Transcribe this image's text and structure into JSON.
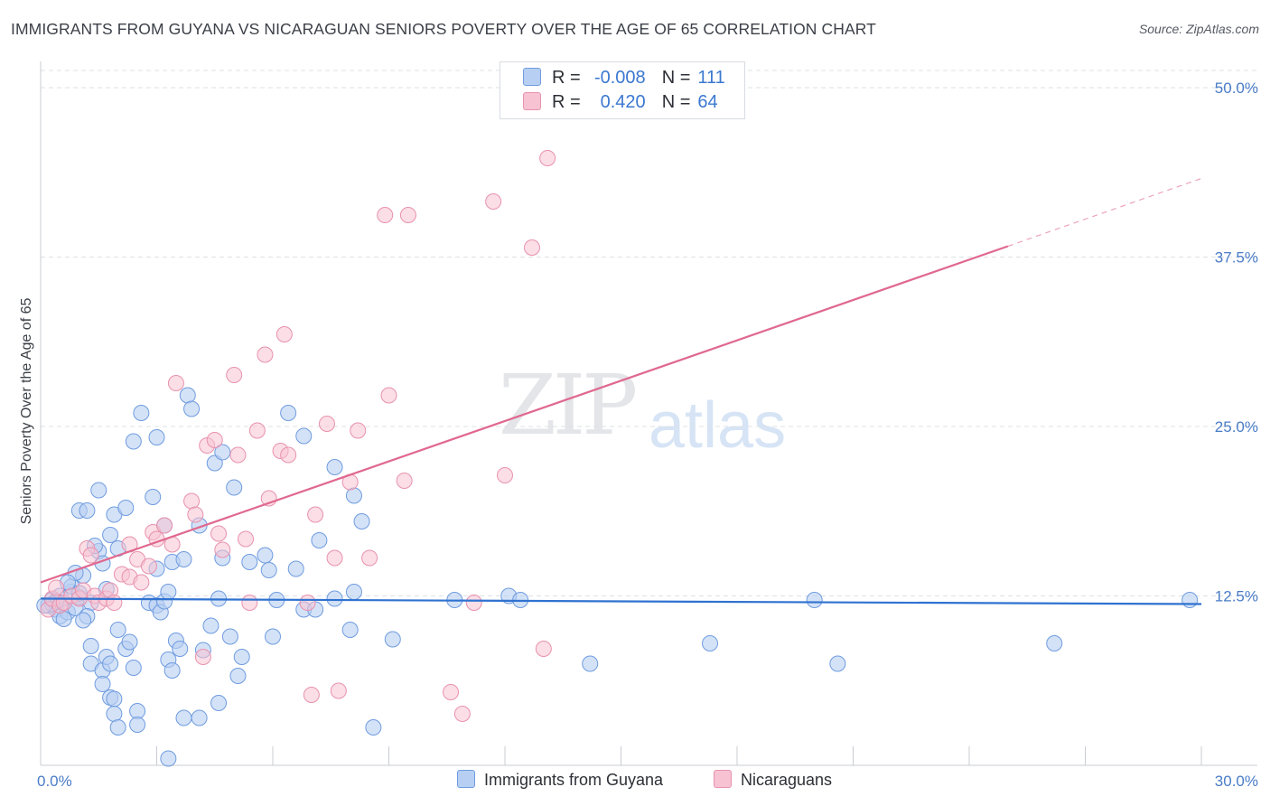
{
  "title": "IMMIGRANTS FROM GUYANA VS NICARAGUAN SENIORS POVERTY OVER THE AGE OF 65 CORRELATION CHART",
  "source": "Source: ZipAtlas.com",
  "watermark": {
    "zip": "ZIP",
    "atlas": "atlas"
  },
  "colors": {
    "blue_fill": "#b7cff2",
    "blue_stroke": "#6f9ce0",
    "blue_line": "#2f72d0",
    "pink_fill": "#f7c2d2",
    "pink_stroke": "#e892ae",
    "pink_line": "#e0688f",
    "axis_text": "#4a7cc7",
    "grid": "#dde0e5"
  },
  "legend": {
    "rows": [
      {
        "r_label": "R =",
        "r_value": "-0.008",
        "n_label": "N =",
        "n_value": "111"
      },
      {
        "r_label": "R =",
        "r_value": "0.420",
        "n_label": "N =",
        "n_value": "64"
      }
    ]
  },
  "bottom_legend": {
    "series1": "Immigrants from Guyana",
    "series2": "Nicaraguans"
  },
  "chart_data": {
    "type": "scatter",
    "title": "IMMIGRANTS FROM GUYANA VS NICARAGUAN SENIORS POVERTY OVER THE AGE OF 65 CORRELATION CHART",
    "xlabel": "",
    "ylabel": "Seniors Poverty Over the Age of 65",
    "xlim": [
      0,
      30
    ],
    "ylim": [
      0,
      50
    ],
    "x_tick_labels": [
      "0.0%",
      "30.0%"
    ],
    "y_ticks": [
      12.5,
      25.0,
      37.5,
      50.0
    ],
    "y_tick_labels": [
      "12.5%",
      "25.0%",
      "37.5%",
      "50.0%"
    ],
    "series": [
      {
        "name": "Immigrants from Guyana",
        "trend": {
          "x0": 0,
          "y0": 12.3,
          "x1": 30,
          "y1": 11.9,
          "dashed_from": null
        },
        "points": [
          [
            0.2,
            11.8
          ],
          [
            0.3,
            12.2
          ],
          [
            0.4,
            11.5
          ],
          [
            0.5,
            11.0
          ],
          [
            0.6,
            12.0
          ],
          [
            0.5,
            12.5
          ],
          [
            0.7,
            11.3
          ],
          [
            0.8,
            12.8
          ],
          [
            0.6,
            10.8
          ],
          [
            0.4,
            12.1
          ],
          [
            0.9,
            11.6
          ],
          [
            1.0,
            12.4
          ],
          [
            0.3,
            11.9
          ],
          [
            0.8,
            13.2
          ],
          [
            1.1,
            14.0
          ],
          [
            1.3,
            12.0
          ],
          [
            1.2,
            11.0
          ],
          [
            0.9,
            14.2
          ],
          [
            1.0,
            12.7
          ],
          [
            0.7,
            13.5
          ],
          [
            1.5,
            15.8
          ],
          [
            1.4,
            16.2
          ],
          [
            1.6,
            14.9
          ],
          [
            1.7,
            13.0
          ],
          [
            1.8,
            17.0
          ],
          [
            1.9,
            18.5
          ],
          [
            1.0,
            18.8
          ],
          [
            1.2,
            18.8
          ],
          [
            1.5,
            20.3
          ],
          [
            1.1,
            10.7
          ],
          [
            1.3,
            8.8
          ],
          [
            1.3,
            7.5
          ],
          [
            1.6,
            7.0
          ],
          [
            1.6,
            6.0
          ],
          [
            1.8,
            5.0
          ],
          [
            1.9,
            4.9
          ],
          [
            1.9,
            3.8
          ],
          [
            2.0,
            2.8
          ],
          [
            1.7,
            8.0
          ],
          [
            1.8,
            7.5
          ],
          [
            2.0,
            10.0
          ],
          [
            2.2,
            8.6
          ],
          [
            2.3,
            9.1
          ],
          [
            2.4,
            7.2
          ],
          [
            2.5,
            4.0
          ],
          [
            2.5,
            3.0
          ],
          [
            2.2,
            19.0
          ],
          [
            2.4,
            23.9
          ],
          [
            2.6,
            26.0
          ],
          [
            2.0,
            16.0
          ],
          [
            2.8,
            12.0
          ],
          [
            3.0,
            11.8
          ],
          [
            3.1,
            11.3
          ],
          [
            3.2,
            12.1
          ],
          [
            3.0,
            14.5
          ],
          [
            2.9,
            19.8
          ],
          [
            3.0,
            24.2
          ],
          [
            3.2,
            17.7
          ],
          [
            3.4,
            15.0
          ],
          [
            3.3,
            12.8
          ],
          [
            3.3,
            7.8
          ],
          [
            3.4,
            7.0
          ],
          [
            3.5,
            9.2
          ],
          [
            3.6,
            8.6
          ],
          [
            3.7,
            15.2
          ],
          [
            3.8,
            27.3
          ],
          [
            3.9,
            26.3
          ],
          [
            4.1,
            17.7
          ],
          [
            4.2,
            8.5
          ],
          [
            4.1,
            3.5
          ],
          [
            3.3,
            0.5
          ],
          [
            3.7,
            3.5
          ],
          [
            4.4,
            10.3
          ],
          [
            4.5,
            22.3
          ],
          [
            4.6,
            4.6
          ],
          [
            4.6,
            12.3
          ],
          [
            4.7,
            15.3
          ],
          [
            4.7,
            23.1
          ],
          [
            4.9,
            9.5
          ],
          [
            5.0,
            20.5
          ],
          [
            5.2,
            8.0
          ],
          [
            5.1,
            6.6
          ],
          [
            5.4,
            15.0
          ],
          [
            5.8,
            15.5
          ],
          [
            6.1,
            12.2
          ],
          [
            6.0,
            9.5
          ],
          [
            5.9,
            14.4
          ],
          [
            6.4,
            26.0
          ],
          [
            6.8,
            24.3
          ],
          [
            6.6,
            14.5
          ],
          [
            6.8,
            11.5
          ],
          [
            7.1,
            11.5
          ],
          [
            7.2,
            16.6
          ],
          [
            7.6,
            12.3
          ],
          [
            7.6,
            22.0
          ],
          [
            8.3,
            18.0
          ],
          [
            8.1,
            12.8
          ],
          [
            8.0,
            10.0
          ],
          [
            8.1,
            19.9
          ],
          [
            8.6,
            2.8
          ],
          [
            9.1,
            9.3
          ],
          [
            10.7,
            12.2
          ],
          [
            12.1,
            12.5
          ],
          [
            12.4,
            12.2
          ],
          [
            14.2,
            7.5
          ],
          [
            17.3,
            9.0
          ],
          [
            20.0,
            12.2
          ],
          [
            20.6,
            7.5
          ],
          [
            26.2,
            9.0
          ],
          [
            29.7,
            12.2
          ],
          [
            0.1,
            11.8
          ]
        ]
      },
      {
        "name": "Nicaraguans",
        "trend": {
          "x0": 0,
          "y0": 13.5,
          "x1": 25,
          "y1": 38.3,
          "dashed_to": {
            "x": 30,
            "y": 43.3
          }
        },
        "points": [
          [
            0.2,
            11.5
          ],
          [
            0.3,
            12.3
          ],
          [
            0.4,
            13.1
          ],
          [
            0.5,
            11.8
          ],
          [
            0.6,
            12.0
          ],
          [
            0.8,
            12.5
          ],
          [
            1.0,
            12.3
          ],
          [
            1.1,
            12.9
          ],
          [
            1.2,
            16.0
          ],
          [
            1.3,
            15.5
          ],
          [
            1.4,
            12.5
          ],
          [
            1.5,
            12.0
          ],
          [
            1.7,
            12.3
          ],
          [
            1.8,
            12.9
          ],
          [
            1.9,
            12.0
          ],
          [
            2.1,
            14.1
          ],
          [
            2.3,
            13.9
          ],
          [
            2.3,
            16.3
          ],
          [
            2.5,
            15.2
          ],
          [
            2.6,
            13.5
          ],
          [
            2.8,
            14.7
          ],
          [
            2.9,
            17.2
          ],
          [
            3.0,
            16.7
          ],
          [
            3.2,
            17.7
          ],
          [
            3.4,
            16.3
          ],
          [
            3.5,
            28.2
          ],
          [
            3.9,
            19.5
          ],
          [
            4.0,
            18.5
          ],
          [
            4.2,
            8.0
          ],
          [
            4.3,
            23.6
          ],
          [
            4.5,
            24.0
          ],
          [
            4.6,
            17.1
          ],
          [
            4.7,
            15.9
          ],
          [
            5.0,
            28.8
          ],
          [
            5.1,
            22.9
          ],
          [
            5.3,
            16.7
          ],
          [
            5.4,
            12.0
          ],
          [
            5.6,
            24.7
          ],
          [
            5.8,
            30.3
          ],
          [
            5.9,
            19.7
          ],
          [
            6.2,
            23.2
          ],
          [
            6.3,
            31.8
          ],
          [
            6.4,
            22.9
          ],
          [
            6.9,
            12.0
          ],
          [
            7.0,
            5.2
          ],
          [
            7.1,
            18.5
          ],
          [
            7.4,
            25.2
          ],
          [
            7.6,
            15.3
          ],
          [
            7.7,
            5.5
          ],
          [
            8.0,
            20.9
          ],
          [
            8.2,
            24.7
          ],
          [
            8.5,
            15.3
          ],
          [
            8.9,
            40.6
          ],
          [
            9.0,
            27.3
          ],
          [
            9.4,
            21.0
          ],
          [
            9.5,
            40.6
          ],
          [
            10.6,
            5.4
          ],
          [
            10.9,
            3.8
          ],
          [
            11.2,
            12.0
          ],
          [
            11.7,
            41.6
          ],
          [
            12.0,
            21.4
          ],
          [
            12.7,
            38.2
          ],
          [
            13.0,
            8.6
          ],
          [
            13.1,
            44.8
          ]
        ]
      }
    ]
  }
}
